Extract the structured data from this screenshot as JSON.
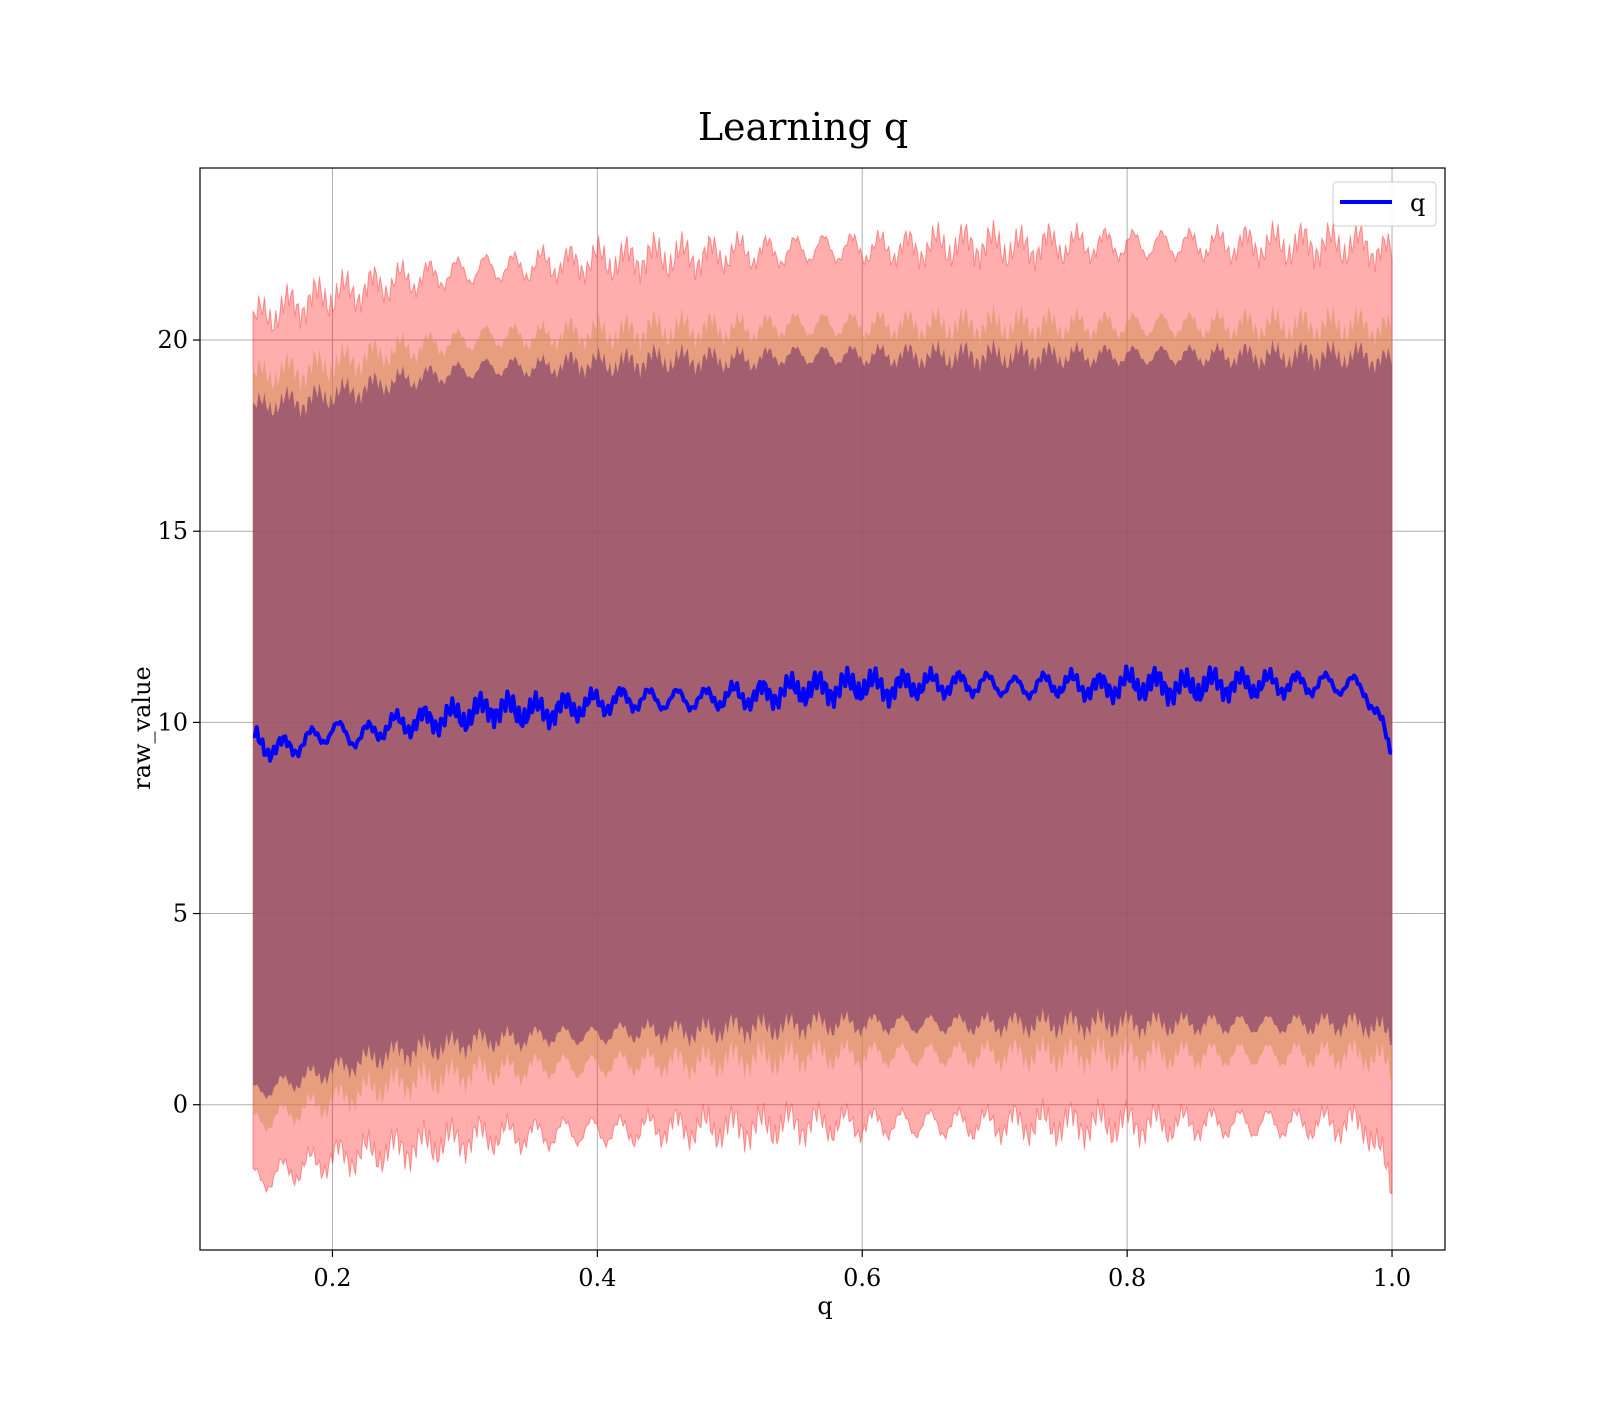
{
  "chart_data": {
    "type": "line",
    "title": "Learning q",
    "xlabel": "q",
    "ylabel": "raw_value",
    "xlim": [
      0.1,
      1.04
    ],
    "ylim": [
      -3.8,
      24.5
    ],
    "grid": true,
    "legend_placement": "top-right",
    "x_ticks": [
      0.2,
      0.4,
      0.6,
      0.8,
      1.0
    ],
    "x_tick_labels": [
      "0.2",
      "0.4",
      "0.6",
      "0.8",
      "1.0"
    ],
    "y_ticks": [
      0,
      5,
      10,
      15,
      20
    ],
    "y_tick_labels": [
      "0",
      "5",
      "10",
      "15",
      "20"
    ],
    "colors": {
      "line": "#0000ff",
      "band_outer": "#ff0000",
      "band_middle": "#d4915a",
      "band_inner": "#8c4a6b",
      "grid": "#b0b0b0",
      "axes": "#000000"
    },
    "series": [
      {
        "name": "q",
        "x": [
          0.14,
          0.16,
          0.18,
          0.2,
          0.22,
          0.24,
          0.26,
          0.28,
          0.3,
          0.32,
          0.34,
          0.36,
          0.38,
          0.4,
          0.42,
          0.44,
          0.46,
          0.48,
          0.5,
          0.52,
          0.54,
          0.56,
          0.58,
          0.6,
          0.62,
          0.64,
          0.66,
          0.68,
          0.7,
          0.72,
          0.74,
          0.76,
          0.78,
          0.8,
          0.82,
          0.84,
          0.86,
          0.88,
          0.9,
          0.92,
          0.94,
          0.96,
          0.98,
          1.0
        ],
        "y": [
          9.5,
          9.3,
          9.5,
          9.8,
          9.6,
          9.9,
          10.0,
          10.1,
          10.2,
          10.4,
          10.3,
          10.3,
          10.4,
          10.5,
          10.6,
          10.6,
          10.6,
          10.6,
          10.7,
          10.7,
          10.8,
          10.9,
          10.9,
          11.0,
          10.9,
          11.0,
          11.0,
          11.0,
          11.0,
          10.9,
          11.0,
          11.0,
          10.9,
          11.0,
          11.0,
          10.9,
          11.0,
          11.0,
          11.0,
          11.0,
          11.0,
          11.0,
          10.9,
          9.2
        ],
        "upper_outer": [
          20.5,
          20.8,
          21.0,
          21.2,
          21.3,
          21.5,
          21.6,
          21.7,
          21.8,
          21.9,
          21.9,
          22.0,
          22.0,
          22.1,
          22.1,
          22.2,
          22.2,
          22.2,
          22.3,
          22.3,
          22.3,
          22.4,
          22.4,
          22.4,
          22.4,
          22.4,
          22.5,
          22.5,
          22.5,
          22.4,
          22.5,
          22.5,
          22.5,
          22.5,
          22.5,
          22.5,
          22.5,
          22.5,
          22.5,
          22.5,
          22.5,
          22.5,
          22.5,
          22.2
        ],
        "upper_inner": [
          19.0,
          19.2,
          19.2,
          19.4,
          19.5,
          19.7,
          19.8,
          19.9,
          20.0,
          20.1,
          20.1,
          20.1,
          20.2,
          20.2,
          20.2,
          20.3,
          20.3,
          20.3,
          20.3,
          20.3,
          20.4,
          20.4,
          20.4,
          20.4,
          20.4,
          20.4,
          20.4,
          20.4,
          20.4,
          20.4,
          20.4,
          20.4,
          20.4,
          20.4,
          20.4,
          20.4,
          20.4,
          20.4,
          20.4,
          20.4,
          20.4,
          20.4,
          20.4,
          20.2
        ],
        "lower_inner": [
          -0.5,
          -0.3,
          -0.1,
          0.1,
          0.3,
          0.5,
          0.6,
          0.7,
          0.8,
          0.9,
          0.9,
          1.0,
          1.0,
          1.0,
          1.1,
          1.1,
          1.1,
          1.1,
          1.2,
          1.2,
          1.2,
          1.3,
          1.3,
          1.3,
          1.3,
          1.3,
          1.3,
          1.3,
          1.3,
          1.3,
          1.3,
          1.3,
          1.3,
          1.3,
          1.3,
          1.3,
          1.3,
          1.3,
          1.3,
          1.3,
          1.3,
          1.3,
          1.3,
          1.0
        ],
        "lower_outer": [
          -2.0,
          -1.8,
          -1.6,
          -1.4,
          -1.3,
          -1.2,
          -1.1,
          -1.0,
          -0.9,
          -0.8,
          -0.8,
          -0.8,
          -0.7,
          -0.7,
          -0.7,
          -0.6,
          -0.6,
          -0.6,
          -0.6,
          -0.6,
          -0.5,
          -0.5,
          -0.5,
          -0.5,
          -0.5,
          -0.5,
          -0.5,
          -0.5,
          -0.5,
          -0.5,
          -0.5,
          -0.5,
          -0.5,
          -0.5,
          -0.5,
          -0.5,
          -0.5,
          -0.5,
          -0.5,
          -0.5,
          -0.5,
          -0.5,
          -0.5,
          -2.0
        ]
      }
    ]
  }
}
